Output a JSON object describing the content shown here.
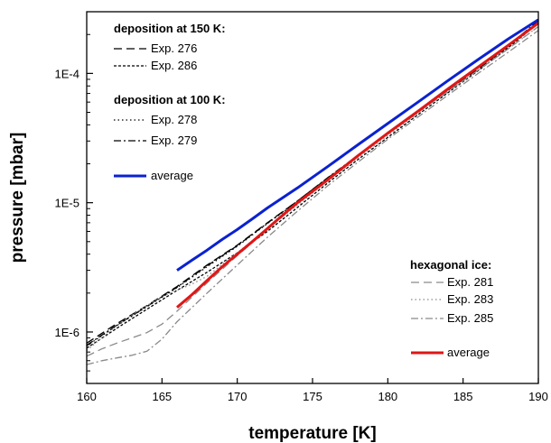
{
  "chart_data": {
    "type": "line",
    "xlabel": "temperature [K]",
    "ylabel": "pressure [mbar]",
    "xlim": [
      160,
      190
    ],
    "ylim": [
      4e-07,
      0.0003
    ],
    "yscale": "log",
    "grid": false,
    "x_ticks": [
      "160",
      "165",
      "170",
      "175",
      "180",
      "185",
      "190"
    ],
    "y_ticks": [
      "1E-6",
      "1E-5",
      "1E-4"
    ],
    "legend_groups": [
      {
        "title": "deposition at 150 K:",
        "placement": "top-left",
        "items": [
          "Exp. 276",
          "Exp. 286"
        ]
      },
      {
        "title": "deposition at 100 K:",
        "placement": "top-left",
        "items": [
          "Exp. 278",
          "Exp. 279"
        ]
      },
      {
        "title": "",
        "placement": "top-left",
        "items": [
          "average"
        ]
      },
      {
        "title": "hexagonal ice:",
        "placement": "bottom-right",
        "items": [
          "Exp. 281",
          "Exp. 283",
          "Exp. 285"
        ]
      },
      {
        "title": "",
        "placement": "bottom-right",
        "items": [
          "average"
        ]
      }
    ],
    "series": [
      {
        "name": "Exp. 276",
        "color": "#000000",
        "dash": "long-dash",
        "width": 1.3,
        "x": [
          160,
          162,
          164,
          166,
          168,
          170,
          172,
          174,
          176,
          178,
          180,
          182,
          184,
          186,
          188,
          190
        ],
        "y": [
          8.2e-07,
          1.16e-06,
          1.6e-06,
          2.25e-06,
          3.3e-06,
          4.7e-06,
          7e-06,
          1.03e-05,
          1.55e-05,
          2.3e-05,
          3.4e-05,
          5e-05,
          7.4e-05,
          0.000108,
          0.000162,
          0.00025
        ]
      },
      {
        "name": "Exp. 286",
        "color": "#000000",
        "dash": "short-dash",
        "width": 1.3,
        "x": [
          160,
          162,
          164,
          166,
          168,
          170,
          172,
          174,
          176,
          178,
          180,
          182,
          184,
          186,
          188,
          190
        ],
        "y": [
          7.5e-07,
          1.07e-06,
          1.5e-06,
          2.1e-06,
          2.9e-06,
          4.1e-06,
          6e-06,
          9.2e-06,
          1.42e-05,
          2.15e-05,
          3.2e-05,
          4.8e-05,
          7.1e-05,
          0.000105,
          0.000158,
          0.000245
        ]
      },
      {
        "name": "Exp. 278",
        "color": "#000000",
        "dash": "dot",
        "width": 1.3,
        "x": [
          160,
          162,
          164,
          166,
          168,
          170,
          172,
          174,
          176,
          178,
          180,
          182,
          184,
          186,
          188,
          190
        ],
        "y": [
          7.8e-07,
          1.12e-06,
          1.57e-06,
          2.2e-06,
          3.2e-06,
          4.6e-06,
          6.9e-06,
          1.02e-05,
          1.55e-05,
          2.3e-05,
          3.4e-05,
          5e-05,
          7.4e-05,
          0.00011,
          0.000163,
          0.000252
        ]
      },
      {
        "name": "Exp. 279",
        "color": "#000000",
        "dash": "dash-dot",
        "width": 1.3,
        "x": [
          160,
          162,
          164,
          166,
          168,
          170,
          172,
          174,
          176,
          178,
          180,
          182,
          184,
          186,
          188,
          190
        ],
        "y": [
          7.9e-07,
          1.13e-06,
          1.58e-06,
          2.22e-06,
          3.25e-06,
          4.65e-06,
          6.95e-06,
          1.03e-05,
          1.56e-05,
          2.32e-05,
          3.45e-05,
          5.1e-05,
          7.5e-05,
          0.000111,
          0.000165,
          0.000255
        ]
      },
      {
        "name": "average",
        "color": "#0a22d0",
        "dash": "solid",
        "width": 3,
        "x": [
          166,
          167,
          168,
          169,
          170,
          171,
          172,
          174,
          176,
          178,
          180,
          182,
          184,
          186,
          188,
          190
        ],
        "y": [
          3e-06,
          3.6e-06,
          4.3e-06,
          5.2e-06,
          6.2e-06,
          7.5e-06,
          9.1e-06,
          1.3e-05,
          1.9e-05,
          2.8e-05,
          4.1e-05,
          6e-05,
          8.8e-05,
          0.000128,
          0.000185,
          0.00026
        ]
      },
      {
        "name": "Exp. 281",
        "color": "#8a8a8a",
        "dash": "long-dash",
        "width": 1.3,
        "x": [
          160,
          161,
          162,
          163,
          164,
          165,
          166,
          168,
          170,
          172,
          174,
          176,
          178,
          180,
          182,
          184,
          186,
          188,
          190
        ],
        "y": [
          6.5e-07,
          7.4e-07,
          8.2e-07,
          9e-07,
          9.9e-07,
          1.15e-06,
          1.45e-06,
          2.4e-06,
          3.9e-06,
          6.2e-06,
          9.8e-06,
          1.52e-05,
          2.3e-05,
          3.4e-05,
          5e-05,
          7.3e-05,
          0.000106,
          0.000155,
          0.00023
        ]
      },
      {
        "name": "Exp. 283",
        "color": "#8a8a8a",
        "dash": "dot",
        "width": 1.3,
        "x": [
          160,
          161,
          162,
          163,
          164,
          165,
          166,
          167,
          168,
          170,
          172,
          174,
          176,
          178,
          180,
          182,
          184,
          186,
          188,
          190
        ],
        "y": [
          7.2e-07,
          9e-07,
          1.12e-06,
          1.35e-06,
          1.6e-06,
          1.88e-06,
          2.1e-06,
          2.35e-06,
          2.7e-06,
          4.1e-06,
          6.3e-06,
          9.6e-06,
          1.47e-05,
          2.2e-05,
          3.3e-05,
          4.9e-05,
          7.2e-05,
          0.000106,
          0.000155,
          0.00023
        ]
      },
      {
        "name": "Exp. 285",
        "color": "#8a8a8a",
        "dash": "dash-dot",
        "width": 1.3,
        "x": [
          160,
          161,
          162,
          163,
          164,
          165,
          166,
          168,
          170,
          172,
          174,
          176,
          178,
          180,
          182,
          184,
          186,
          188,
          190
        ],
        "y": [
          5.6e-07,
          6e-07,
          6.3e-07,
          6.6e-07,
          7.1e-07,
          8.8e-07,
          1.2e-06,
          2e-06,
          3.3e-06,
          5.4e-06,
          8.6e-06,
          1.35e-05,
          2.05e-05,
          3.1e-05,
          4.6e-05,
          6.8e-05,
          0.0001,
          0.000146,
          0.000215
        ]
      },
      {
        "name": "average",
        "color": "#e01616",
        "dash": "solid",
        "width": 3,
        "x": [
          166,
          167,
          168,
          169,
          170,
          171,
          172,
          173,
          174,
          176,
          178,
          180,
          182,
          184,
          186,
          188,
          190
        ],
        "y": [
          1.55e-06,
          1.95e-06,
          2.5e-06,
          3.2e-06,
          4e-06,
          5e-06,
          6.3e-06,
          8e-06,
          1e-05,
          1.5e-05,
          2.3e-05,
          3.45e-05,
          5.1e-05,
          7.6e-05,
          0.000112,
          0.000165,
          0.000245
        ]
      }
    ]
  }
}
